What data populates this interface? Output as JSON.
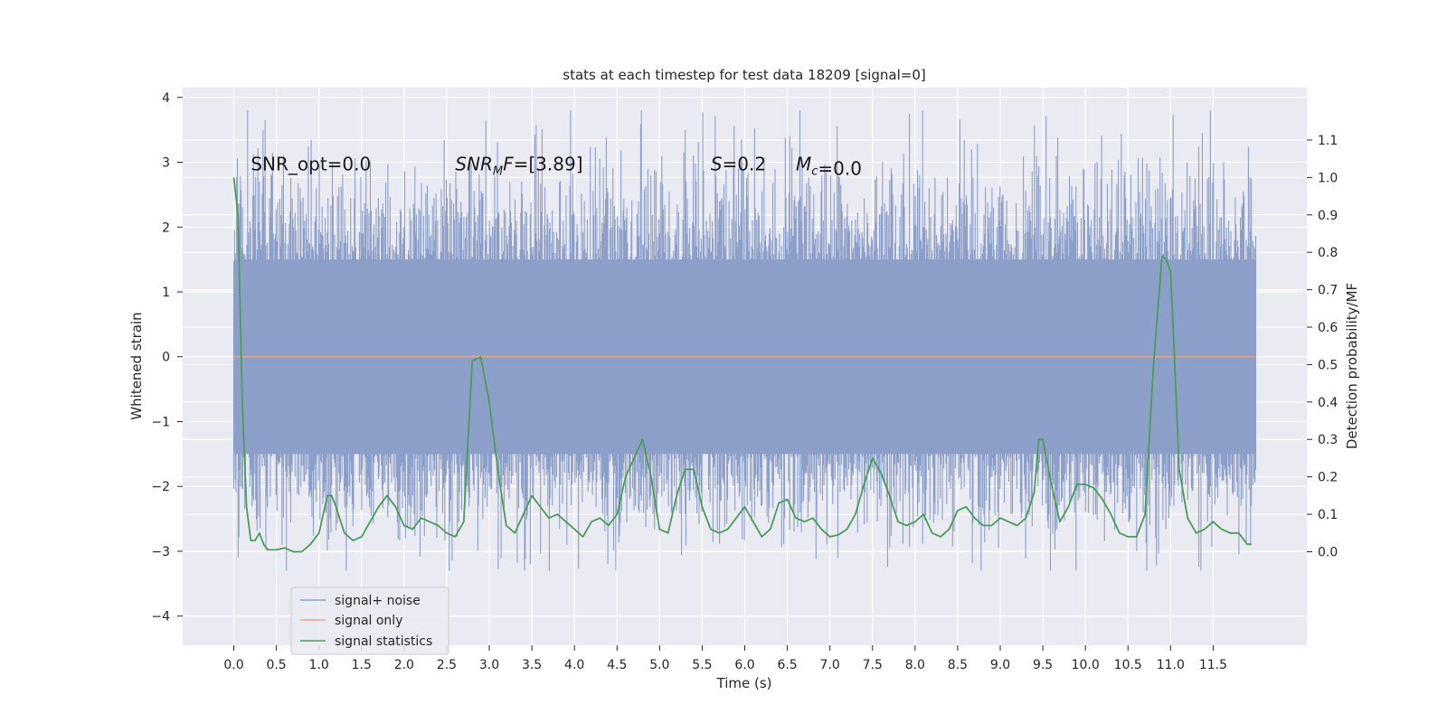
{
  "chart_data": {
    "type": "line",
    "title": "stats at each timestep for test data 18209 [signal=0]",
    "xlabel": "Time (s)",
    "ylabel_left": "Whitened strain",
    "ylabel_right": "Detection probability/MF",
    "xlim": [
      -0.6,
      12.6
    ],
    "ylim_left": [
      -4.45,
      4.15
    ],
    "ylim_right": [
      -0.25,
      1.24
    ],
    "x_ticks": [
      "0.0",
      "0.5",
      "1.0",
      "1.5",
      "2.0",
      "2.5",
      "3.0",
      "3.5",
      "4.0",
      "4.5",
      "5.0",
      "5.5",
      "6.0",
      "6.5",
      "7.0",
      "7.5",
      "8.0",
      "8.5",
      "9.0",
      "9.5",
      "10.0",
      "10.5",
      "11.0",
      "11.5"
    ],
    "y_ticks_left": [
      "−4",
      "−3",
      "−2",
      "−1",
      "0",
      "1",
      "2",
      "3",
      "4"
    ],
    "y_ticks_right": [
      "0.0",
      "0.1",
      "0.2",
      "0.3",
      "0.4",
      "0.5",
      "0.6",
      "0.7",
      "0.8",
      "0.9",
      "1.0",
      "1.1"
    ],
    "grid": true,
    "legend_position": "lower-left",
    "annotations": [
      {
        "text": "SNR_opt=0.0",
        "x": 0.2,
        "y": 2.97
      },
      {
        "text": "SNR_MF=[3.89]",
        "x": 2.6,
        "y": 2.97
      },
      {
        "text": "S=0.2",
        "x": 5.6,
        "y": 2.97
      },
      {
        "text": "M_c=0.0",
        "x": 6.6,
        "y": 2.97
      }
    ],
    "series": [
      {
        "name": "signal+ noise",
        "color": "#8c9fc9",
        "axis": "left",
        "x_range": [
          0.0,
          12.0
        ],
        "band": [
          -1.5,
          1.5
        ],
        "typical_extremes": [
          -3.3,
          3.8
        ]
      },
      {
        "name": "signal only",
        "color": "#e3a68a",
        "axis": "left",
        "x": [
          0.0,
          12.0
        ],
        "y": [
          0.0,
          0.0
        ]
      },
      {
        "name": "signal statistics",
        "color": "#4a9c5a",
        "axis": "right",
        "x": [
          0.0,
          0.05,
          0.1,
          0.15,
          0.2,
          0.25,
          0.3,
          0.35,
          0.4,
          0.5,
          0.6,
          0.7,
          0.8,
          0.9,
          1.0,
          1.1,
          1.15,
          1.2,
          1.3,
          1.4,
          1.5,
          1.6,
          1.7,
          1.8,
          1.9,
          2.0,
          2.1,
          2.2,
          2.3,
          2.4,
          2.5,
          2.6,
          2.7,
          2.8,
          2.9,
          3.0,
          3.1,
          3.2,
          3.3,
          3.4,
          3.5,
          3.6,
          3.7,
          3.8,
          3.9,
          4.0,
          4.1,
          4.2,
          4.3,
          4.4,
          4.5,
          4.6,
          4.7,
          4.8,
          4.9,
          5.0,
          5.1,
          5.2,
          5.3,
          5.4,
          5.5,
          5.6,
          5.7,
          5.8,
          5.9,
          6.0,
          6.1,
          6.2,
          6.3,
          6.4,
          6.5,
          6.6,
          6.7,
          6.8,
          6.9,
          7.0,
          7.1,
          7.2,
          7.3,
          7.4,
          7.5,
          7.6,
          7.7,
          7.8,
          7.9,
          8.0,
          8.1,
          8.2,
          8.3,
          8.4,
          8.5,
          8.6,
          8.7,
          8.8,
          8.9,
          9.0,
          9.1,
          9.2,
          9.3,
          9.4,
          9.45,
          9.5,
          9.6,
          9.7,
          9.8,
          9.9,
          10.0,
          10.1,
          10.2,
          10.3,
          10.4,
          10.5,
          10.6,
          10.7,
          10.8,
          10.9,
          10.95,
          11.0,
          11.05,
          11.1,
          11.2,
          11.3,
          11.4,
          11.5,
          11.6,
          11.7,
          11.8,
          11.9,
          11.95
        ],
        "y": [
          1.0,
          0.9,
          0.4,
          0.12,
          0.03,
          0.03,
          0.05,
          0.02,
          0.005,
          0.005,
          0.01,
          0.0,
          0.0,
          0.02,
          0.05,
          0.15,
          0.15,
          0.12,
          0.05,
          0.03,
          0.04,
          0.08,
          0.12,
          0.15,
          0.12,
          0.07,
          0.06,
          0.09,
          0.08,
          0.07,
          0.05,
          0.04,
          0.08,
          0.51,
          0.52,
          0.4,
          0.22,
          0.07,
          0.05,
          0.1,
          0.15,
          0.12,
          0.09,
          0.1,
          0.08,
          0.06,
          0.04,
          0.08,
          0.09,
          0.07,
          0.1,
          0.2,
          0.25,
          0.3,
          0.2,
          0.06,
          0.05,
          0.15,
          0.22,
          0.22,
          0.12,
          0.06,
          0.05,
          0.06,
          0.09,
          0.12,
          0.08,
          0.04,
          0.06,
          0.13,
          0.14,
          0.09,
          0.08,
          0.09,
          0.06,
          0.04,
          0.045,
          0.06,
          0.1,
          0.18,
          0.25,
          0.21,
          0.15,
          0.08,
          0.07,
          0.08,
          0.1,
          0.05,
          0.04,
          0.06,
          0.11,
          0.12,
          0.09,
          0.07,
          0.07,
          0.09,
          0.08,
          0.07,
          0.09,
          0.16,
          0.3,
          0.3,
          0.18,
          0.08,
          0.12,
          0.18,
          0.18,
          0.17,
          0.14,
          0.1,
          0.05,
          0.04,
          0.04,
          0.1,
          0.5,
          0.79,
          0.78,
          0.75,
          0.5,
          0.22,
          0.09,
          0.05,
          0.06,
          0.08,
          0.06,
          0.05,
          0.05,
          0.02,
          0.02
        ]
      }
    ]
  }
}
